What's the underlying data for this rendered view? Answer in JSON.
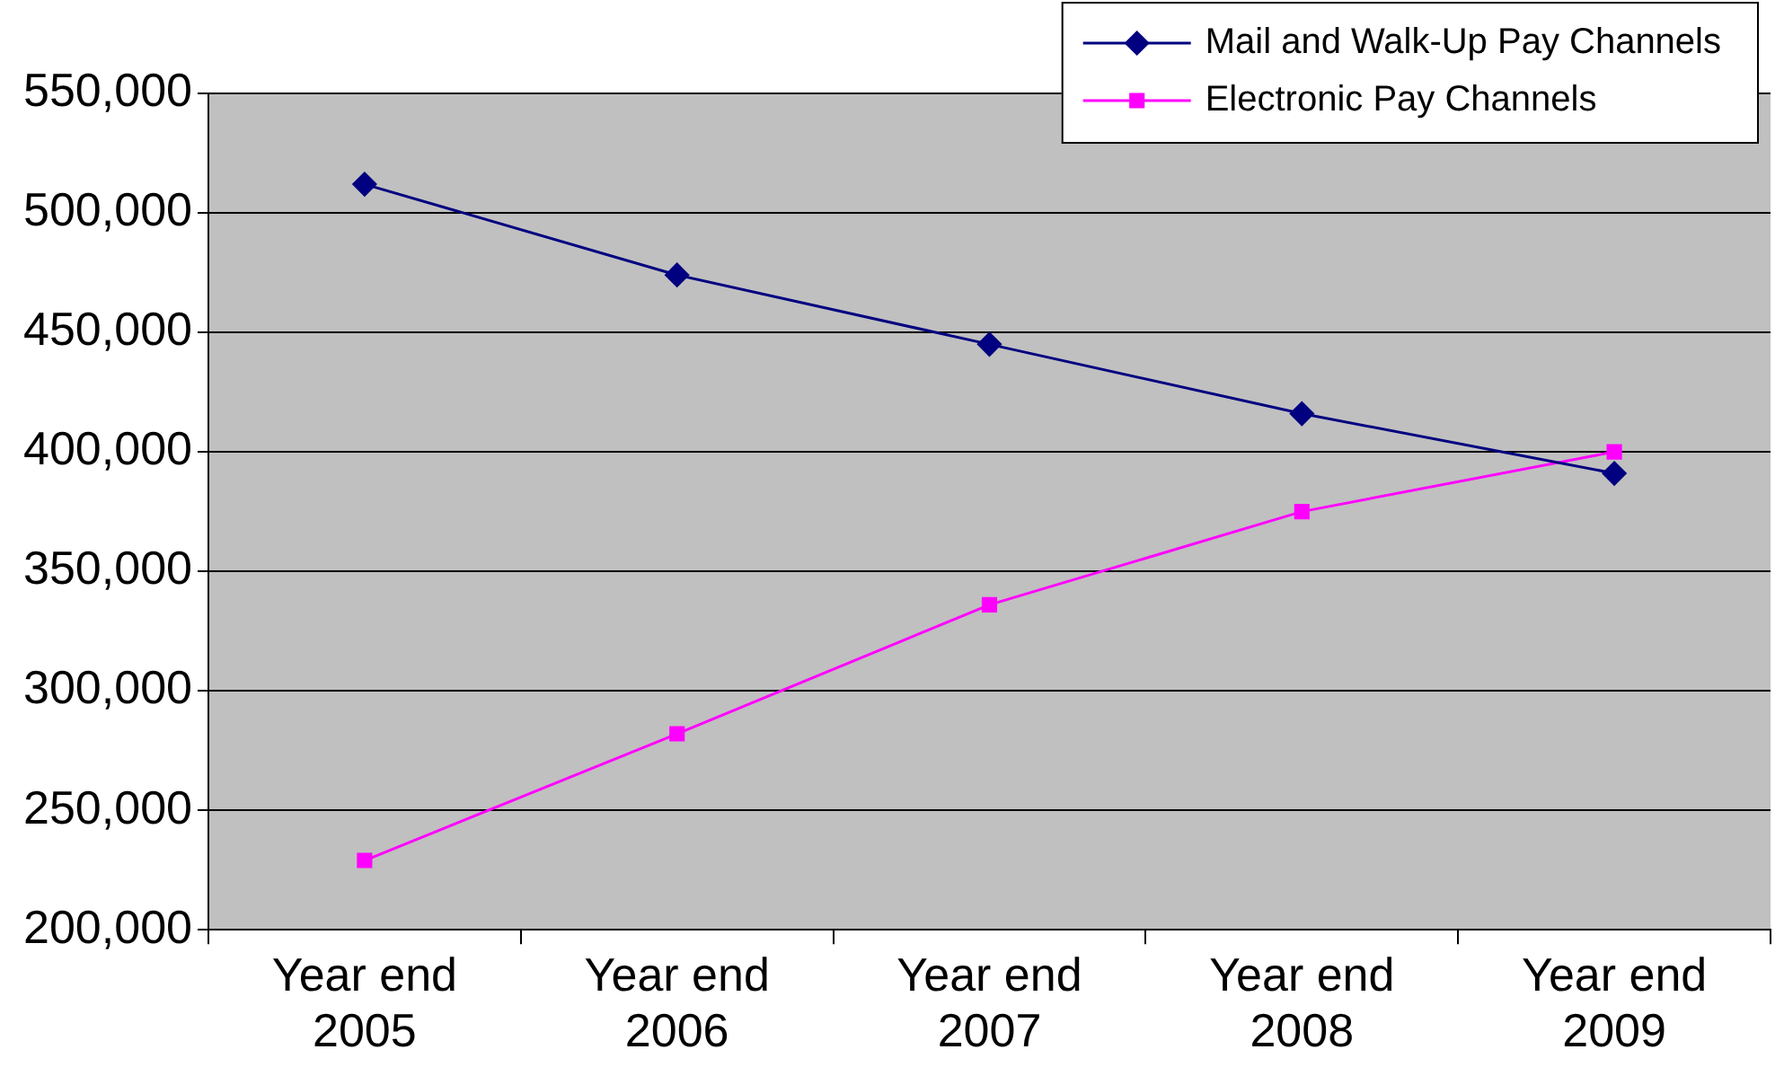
{
  "chart_data": {
    "type": "line",
    "categories": [
      "Year end 2005",
      "Year end 2006",
      "Year end 2007",
      "Year end 2008",
      "Year end 2009"
    ],
    "series": [
      {
        "name": "Mail and Walk-Up Pay Channels",
        "color": "#000080",
        "marker": "diamond",
        "values": [
          512000,
          474000,
          445000,
          416000,
          391000
        ]
      },
      {
        "name": "Electronic Pay Channels",
        "color": "#ff00ff",
        "marker": "square",
        "values": [
          229000,
          282000,
          336000,
          375000,
          400000
        ]
      }
    ],
    "ylim": [
      200000,
      550000
    ],
    "yticks": [
      {
        "value": 200000,
        "label": "200,000"
      },
      {
        "value": 250000,
        "label": "250,000"
      },
      {
        "value": 300000,
        "label": "300,000"
      },
      {
        "value": 350000,
        "label": "350,000"
      },
      {
        "value": 400000,
        "label": "400,000"
      },
      {
        "value": 450000,
        "label": "450,000"
      },
      {
        "value": 500000,
        "label": "500,000"
      },
      {
        "value": 550000,
        "label": "550,000"
      }
    ],
    "grid": "y",
    "legend": "top right"
  }
}
